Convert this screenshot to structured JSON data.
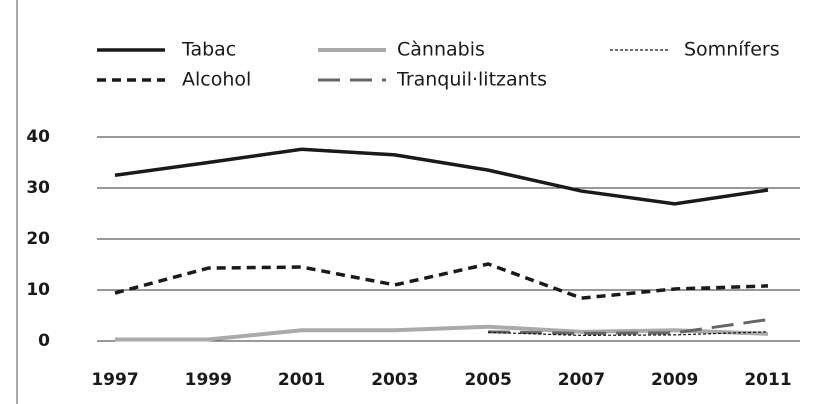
{
  "chart_data": {
    "type": "line",
    "categories": [
      "1997",
      "1999",
      "2001",
      "2003",
      "2005",
      "2007",
      "2009",
      "2011"
    ],
    "series": [
      {
        "name": "Tabac",
        "color": "#1a1a1a",
        "dash": "solid",
        "values": [
          32.5,
          35,
          37.6,
          36.5,
          33.5,
          29.4,
          26.9,
          29.6
        ]
      },
      {
        "name": "Alcohol",
        "color": "#1a1a1a",
        "dash": "dashed",
        "values": [
          9.4,
          14.3,
          14.5,
          11,
          15.1,
          8.4,
          10.2,
          10.8
        ]
      },
      {
        "name": "Cànnabis",
        "color": "#aaaaaa",
        "dash": "solid",
        "values": [
          0.3,
          0.3,
          2.1,
          2.1,
          2.8,
          1.8,
          2.1,
          1.4
        ]
      },
      {
        "name": "Tranquil·litzants",
        "color": "#666666",
        "dash": "long-dashed",
        "values": [
          null,
          null,
          null,
          null,
          1.8,
          1.5,
          1.6,
          4.2
        ]
      },
      {
        "name": "Somnífers",
        "color": "#1a1a1a",
        "dash": "dotted",
        "values": [
          null,
          null,
          null,
          null,
          1.7,
          1.1,
          1.2,
          1.8
        ]
      }
    ],
    "ylim": [
      0,
      40
    ],
    "yticks": [
      0,
      10,
      20,
      30,
      40
    ],
    "grid": true,
    "legend": "top"
  }
}
